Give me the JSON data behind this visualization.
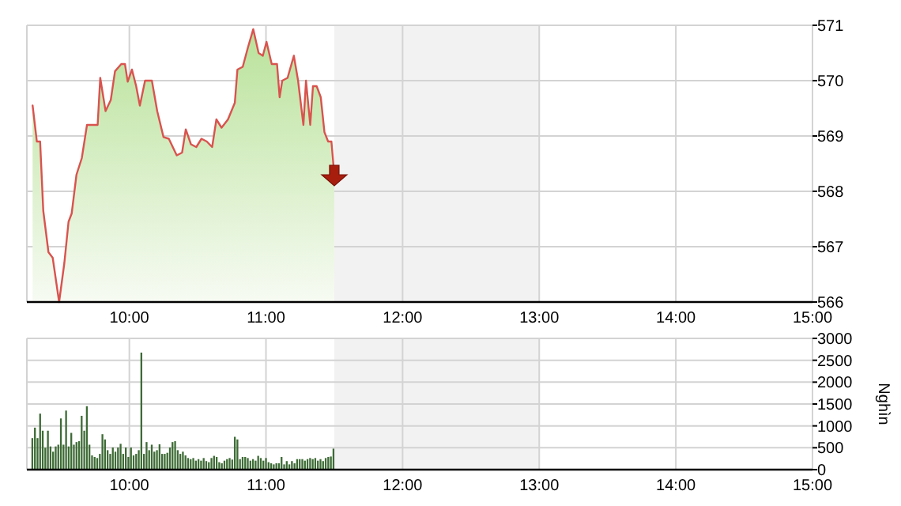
{
  "chart_data": [
    {
      "type": "area",
      "xlim": [
        9.25,
        15
      ],
      "xticks": [
        {
          "value": 10,
          "label": "10:00"
        },
        {
          "value": 11,
          "label": "11:00"
        },
        {
          "value": 12,
          "label": "12:00"
        },
        {
          "value": 13,
          "label": "13:00"
        },
        {
          "value": 14,
          "label": "14:00"
        },
        {
          "value": 15,
          "label": "15:00"
        }
      ],
      "ylim": [
        566,
        571
      ],
      "yticks": [
        566,
        567,
        568,
        569,
        570,
        571
      ],
      "grid": true,
      "bands": [
        {
          "axis": "x",
          "from": 11.5,
          "to": 13,
          "color": "#f2f2f2"
        }
      ],
      "series": [
        {
          "color": "#d9534f",
          "x": [
            9.292,
            9.323,
            9.347,
            9.37,
            9.408,
            9.439,
            9.486,
            9.524,
            9.555,
            9.578,
            9.613,
            9.652,
            9.69,
            9.729,
            9.768,
            9.787,
            9.826,
            9.864,
            9.895,
            9.941,
            9.968,
            9.988,
            10.019,
            10.05,
            10.077,
            10.115,
            10.165,
            10.204,
            10.25,
            10.289,
            10.347,
            10.386,
            10.413,
            10.451,
            10.49,
            10.528,
            10.567,
            10.606,
            10.637,
            10.675,
            10.722,
            10.772,
            10.791,
            10.83,
            10.868,
            10.907,
            10.946,
            10.977,
            11.004,
            11.042,
            11.081,
            11.1,
            11.119,
            11.158,
            11.204,
            11.235,
            11.274,
            11.293,
            11.324,
            11.344,
            11.371,
            11.401,
            11.428,
            11.455,
            11.479,
            11.5
          ],
          "values": [
            569.55,
            568.9,
            568.9,
            567.65,
            566.9,
            566.8,
            566.0,
            566.7,
            567.45,
            567.6,
            568.3,
            568.6,
            569.2,
            569.2,
            569.2,
            570.05,
            569.45,
            569.65,
            570.17,
            570.3,
            570.3,
            569.98,
            570.2,
            569.9,
            569.55,
            570.0,
            570.0,
            569.45,
            568.98,
            568.95,
            568.65,
            568.7,
            569.12,
            568.85,
            568.8,
            568.95,
            568.9,
            568.8,
            569.3,
            569.15,
            569.3,
            569.6,
            570.2,
            570.25,
            570.6,
            570.93,
            570.5,
            570.45,
            570.7,
            570.3,
            570.3,
            569.7,
            570.0,
            570.05,
            570.45,
            570.0,
            569.2,
            570.0,
            569.2,
            569.9,
            569.9,
            569.7,
            569.07,
            568.9,
            568.9,
            568.3
          ]
        }
      ]
    },
    {
      "type": "bar",
      "ylabel": "Nghìn",
      "xlim": [
        9.25,
        15
      ],
      "xticks": [
        {
          "value": 10,
          "label": "10:00"
        },
        {
          "value": 11,
          "label": "11:00"
        },
        {
          "value": 12,
          "label": "12:00"
        },
        {
          "value": 13,
          "label": "13:00"
        },
        {
          "value": 14,
          "label": "14:00"
        },
        {
          "value": 15,
          "label": "15:00"
        }
      ],
      "ylim": [
        0,
        3000
      ],
      "yticks": [
        0,
        500,
        1000,
        1500,
        2000,
        2500,
        3000
      ],
      "grid": true,
      "bands": [
        {
          "axis": "x",
          "from": 11.5,
          "to": 13,
          "color": "#f2f2f2"
        }
      ],
      "series": [
        {
          "color": "#3d6b35",
          "x": [
            9.29,
            9.309,
            9.328,
            9.347,
            9.366,
            9.385,
            9.404,
            9.423,
            9.442,
            9.461,
            9.48,
            9.499,
            9.518,
            9.537,
            9.556,
            9.575,
            9.594,
            9.613,
            9.632,
            9.651,
            9.67,
            9.689,
            9.708,
            9.727,
            9.746,
            9.765,
            9.784,
            9.803,
            9.822,
            9.841,
            9.86,
            9.879,
            9.898,
            9.917,
            9.936,
            9.955,
            9.974,
            9.993,
            10.012,
            10.031,
            10.05,
            10.069,
            10.088,
            10.107,
            10.126,
            10.145,
            10.164,
            10.183,
            10.202,
            10.221,
            10.24,
            10.259,
            10.278,
            10.297,
            10.316,
            10.335,
            10.354,
            10.373,
            10.392,
            10.411,
            10.43,
            10.449,
            10.468,
            10.487,
            10.506,
            10.525,
            10.544,
            10.563,
            10.582,
            10.601,
            10.62,
            10.639,
            10.658,
            10.677,
            10.696,
            10.715,
            10.734,
            10.753,
            10.772,
            10.791,
            10.81,
            10.829,
            10.848,
            10.867,
            10.886,
            10.905,
            10.924,
            10.943,
            10.962,
            10.981,
            11.0,
            11.019,
            11.038,
            11.057,
            11.076,
            11.095,
            11.114,
            11.133,
            11.152,
            11.171,
            11.19,
            11.209,
            11.228,
            11.247,
            11.266,
            11.285,
            11.304,
            11.323,
            11.342,
            11.361,
            11.38,
            11.399,
            11.418,
            11.437,
            11.456,
            11.475,
            11.494
          ],
          "values": [
            720,
            960,
            720,
            1280,
            890,
            500,
            890,
            530,
            410,
            530,
            570,
            1170,
            570,
            1350,
            530,
            840,
            570,
            630,
            650,
            1230,
            890,
            1450,
            570,
            325,
            290,
            265,
            360,
            810,
            690,
            445,
            360,
            505,
            410,
            505,
            590,
            360,
            505,
            290,
            505,
            325,
            360,
            445,
            2675,
            360,
            630,
            445,
            570,
            410,
            445,
            580,
            360,
            360,
            385,
            505,
            630,
            650,
            445,
            360,
            410,
            325,
            265,
            240,
            265,
            205,
            240,
            205,
            265,
            195,
            170,
            265,
            315,
            290,
            170,
            145,
            205,
            240,
            265,
            230,
            750,
            690,
            240,
            290,
            290,
            265,
            205,
            240,
            205,
            315,
            265,
            205,
            265,
            170,
            145,
            120,
            145,
            145,
            290,
            120,
            195,
            120,
            195,
            145,
            240,
            240,
            240,
            205,
            240,
            265,
            240,
            265,
            205,
            240,
            195,
            265,
            290,
            300,
            480
          ]
        }
      ]
    }
  ]
}
